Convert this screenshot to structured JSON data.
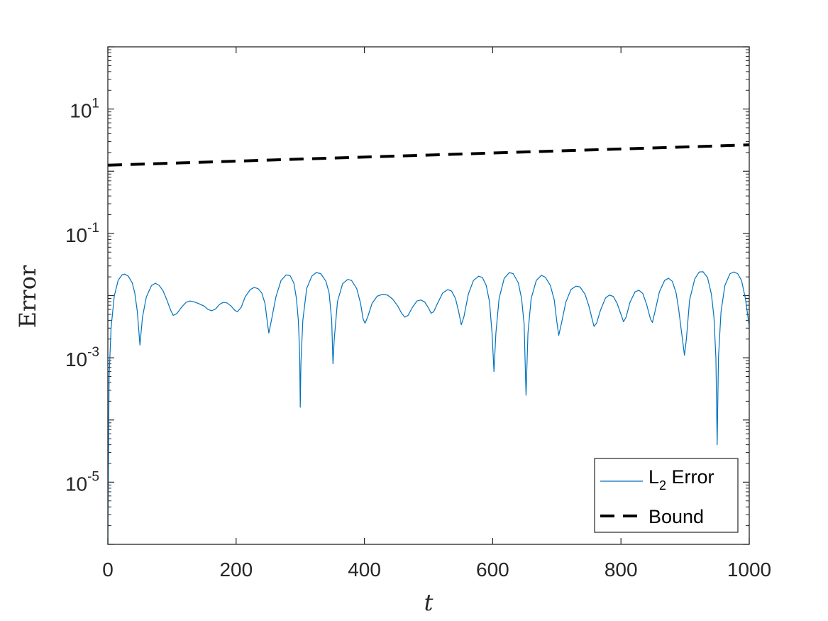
{
  "chart_data": {
    "type": "line",
    "title": "",
    "xlabel": "t",
    "ylabel": "Error",
    "xlim": [
      0,
      1000
    ],
    "ylim": [
      1e-06,
      100
    ],
    "yscale": "log",
    "grid": false,
    "legend_position": "bottom-right",
    "x_ticks": [
      {
        "value": 0,
        "label": "0"
      },
      {
        "value": 200,
        "label": "200"
      },
      {
        "value": 400,
        "label": "400"
      },
      {
        "value": 600,
        "label": "600"
      },
      {
        "value": 800,
        "label": "800"
      },
      {
        "value": 1000,
        "label": "1000"
      }
    ],
    "y_ticks": [
      {
        "value": 10,
        "base": "10",
        "exp": "1"
      },
      {
        "value": 0.1,
        "base": "10",
        "exp": "-1"
      },
      {
        "value": 0.001,
        "base": "10",
        "exp": "-3"
      },
      {
        "value": 1e-05,
        "base": "10",
        "exp": "-5"
      }
    ],
    "series": [
      {
        "name_main": "L",
        "name_sub": "2",
        "name_rest": " Error",
        "color": "#0072BD",
        "style": "solid",
        "points": [
          [
            0,
            1e-06
          ],
          [
            2,
            0.0005
          ],
          [
            5,
            0.003
          ],
          [
            10,
            0.0098
          ],
          [
            16,
            0.0175
          ],
          [
            22,
            0.0215
          ],
          [
            26,
            0.0222
          ],
          [
            32,
            0.0205
          ],
          [
            38,
            0.016
          ],
          [
            42,
            0.011
          ],
          [
            46,
            0.0055
          ],
          [
            50,
            0.0016
          ],
          [
            54,
            0.0045
          ],
          [
            60,
            0.0095
          ],
          [
            68,
            0.0145
          ],
          [
            74,
            0.0158
          ],
          [
            80,
            0.0146
          ],
          [
            86,
            0.012
          ],
          [
            92,
            0.0085
          ],
          [
            98,
            0.0058
          ],
          [
            102,
            0.0048
          ],
          [
            108,
            0.0052
          ],
          [
            115,
            0.0065
          ],
          [
            122,
            0.0078
          ],
          [
            128,
            0.0082
          ],
          [
            135,
            0.0079
          ],
          [
            142,
            0.0074
          ],
          [
            150,
            0.0068
          ],
          [
            156,
            0.006
          ],
          [
            162,
            0.0057
          ],
          [
            168,
            0.0061
          ],
          [
            174,
            0.0072
          ],
          [
            180,
            0.0078
          ],
          [
            186,
            0.0076
          ],
          [
            192,
            0.0068
          ],
          [
            198,
            0.0058
          ],
          [
            202,
            0.0055
          ],
          [
            208,
            0.0065
          ],
          [
            214,
            0.0095
          ],
          [
            222,
            0.0125
          ],
          [
            228,
            0.0135
          ],
          [
            234,
            0.013
          ],
          [
            240,
            0.011
          ],
          [
            245,
            0.0075
          ],
          [
            249,
            0.0035
          ],
          [
            251,
            0.0025
          ],
          [
            255,
            0.004
          ],
          [
            262,
            0.0095
          ],
          [
            270,
            0.0175
          ],
          [
            278,
            0.0215
          ],
          [
            284,
            0.021
          ],
          [
            290,
            0.016
          ],
          [
            294,
            0.009
          ],
          [
            297,
            0.004
          ],
          [
            299,
            0.0012
          ],
          [
            300,
            0.00016
          ],
          [
            301,
            0.0008
          ],
          [
            304,
            0.004
          ],
          [
            310,
            0.013
          ],
          [
            318,
            0.0205
          ],
          [
            325,
            0.0235
          ],
          [
            332,
            0.0225
          ],
          [
            340,
            0.017
          ],
          [
            345,
            0.011
          ],
          [
            349,
            0.004
          ],
          [
            351,
            0.0008
          ],
          [
            353,
            0.002
          ],
          [
            358,
            0.008
          ],
          [
            366,
            0.0155
          ],
          [
            374,
            0.0182
          ],
          [
            380,
            0.0175
          ],
          [
            388,
            0.013
          ],
          [
            394,
            0.0075
          ],
          [
            398,
            0.0042
          ],
          [
            401,
            0.0036
          ],
          [
            405,
            0.0045
          ],
          [
            412,
            0.0075
          ],
          [
            420,
            0.0098
          ],
          [
            428,
            0.0105
          ],
          [
            436,
            0.0102
          ],
          [
            444,
            0.0088
          ],
          [
            452,
            0.0068
          ],
          [
            458,
            0.0052
          ],
          [
            463,
            0.0045
          ],
          [
            468,
            0.0048
          ],
          [
            475,
            0.0065
          ],
          [
            482,
            0.0082
          ],
          [
            488,
            0.0085
          ],
          [
            494,
            0.0079
          ],
          [
            500,
            0.0063
          ],
          [
            504,
            0.0052
          ],
          [
            508,
            0.0055
          ],
          [
            514,
            0.0075
          ],
          [
            522,
            0.011
          ],
          [
            530,
            0.0125
          ],
          [
            536,
            0.0118
          ],
          [
            542,
            0.009
          ],
          [
            547,
            0.0055
          ],
          [
            551,
            0.0034
          ],
          [
            555,
            0.0045
          ],
          [
            562,
            0.0105
          ],
          [
            570,
            0.0175
          ],
          [
            578,
            0.0205
          ],
          [
            584,
            0.0195
          ],
          [
            590,
            0.0145
          ],
          [
            595,
            0.008
          ],
          [
            599,
            0.0025
          ],
          [
            602,
            0.0006
          ],
          [
            605,
            0.0025
          ],
          [
            610,
            0.009
          ],
          [
            618,
            0.019
          ],
          [
            626,
            0.0235
          ],
          [
            632,
            0.0225
          ],
          [
            640,
            0.016
          ],
          [
            645,
            0.009
          ],
          [
            649,
            0.0035
          ],
          [
            652,
            0.00025
          ],
          [
            655,
            0.0025
          ],
          [
            660,
            0.009
          ],
          [
            668,
            0.0175
          ],
          [
            676,
            0.0212
          ],
          [
            682,
            0.0198
          ],
          [
            690,
            0.0145
          ],
          [
            696,
            0.0085
          ],
          [
            700,
            0.0038
          ],
          [
            703,
            0.0023
          ],
          [
            707,
            0.0035
          ],
          [
            714,
            0.0078
          ],
          [
            722,
            0.0125
          ],
          [
            730,
            0.0142
          ],
          [
            736,
            0.0138
          ],
          [
            744,
            0.0105
          ],
          [
            750,
            0.0068
          ],
          [
            755,
            0.0042
          ],
          [
            758,
            0.0032
          ],
          [
            762,
            0.0036
          ],
          [
            768,
            0.0058
          ],
          [
            776,
            0.0092
          ],
          [
            782,
            0.0102
          ],
          [
            788,
            0.0097
          ],
          [
            794,
            0.0075
          ],
          [
            800,
            0.005
          ],
          [
            804,
            0.0038
          ],
          [
            808,
            0.0045
          ],
          [
            814,
            0.0078
          ],
          [
            822,
            0.0115
          ],
          [
            828,
            0.0122
          ],
          [
            834,
            0.0108
          ],
          [
            840,
            0.0072
          ],
          [
            846,
            0.0042
          ],
          [
            849,
            0.0037
          ],
          [
            853,
            0.0055
          ],
          [
            860,
            0.0115
          ],
          [
            868,
            0.0175
          ],
          [
            874,
            0.019
          ],
          [
            880,
            0.017
          ],
          [
            886,
            0.011
          ],
          [
            890,
            0.006
          ],
          [
            894,
            0.0028
          ],
          [
            899,
            0.0011
          ],
          [
            902,
            0.002
          ],
          [
            907,
            0.0085
          ],
          [
            915,
            0.0185
          ],
          [
            922,
            0.024
          ],
          [
            928,
            0.0242
          ],
          [
            935,
            0.0195
          ],
          [
            941,
            0.0105
          ],
          [
            945,
            0.0045
          ],
          [
            948,
            0.001
          ],
          [
            950,
            4e-05
          ],
          [
            952,
            0.001
          ],
          [
            956,
            0.0055
          ],
          [
            962,
            0.0145
          ],
          [
            970,
            0.0225
          ],
          [
            976,
            0.024
          ],
          [
            982,
            0.0225
          ],
          [
            988,
            0.0175
          ],
          [
            994,
            0.009
          ],
          [
            1000,
            0.0032
          ]
        ]
      },
      {
        "name_main": "Bound",
        "color": "#000000",
        "style": "dashed",
        "x": [
          0,
          1000
        ],
        "y": [
          1.25,
          2.65
        ]
      }
    ]
  }
}
